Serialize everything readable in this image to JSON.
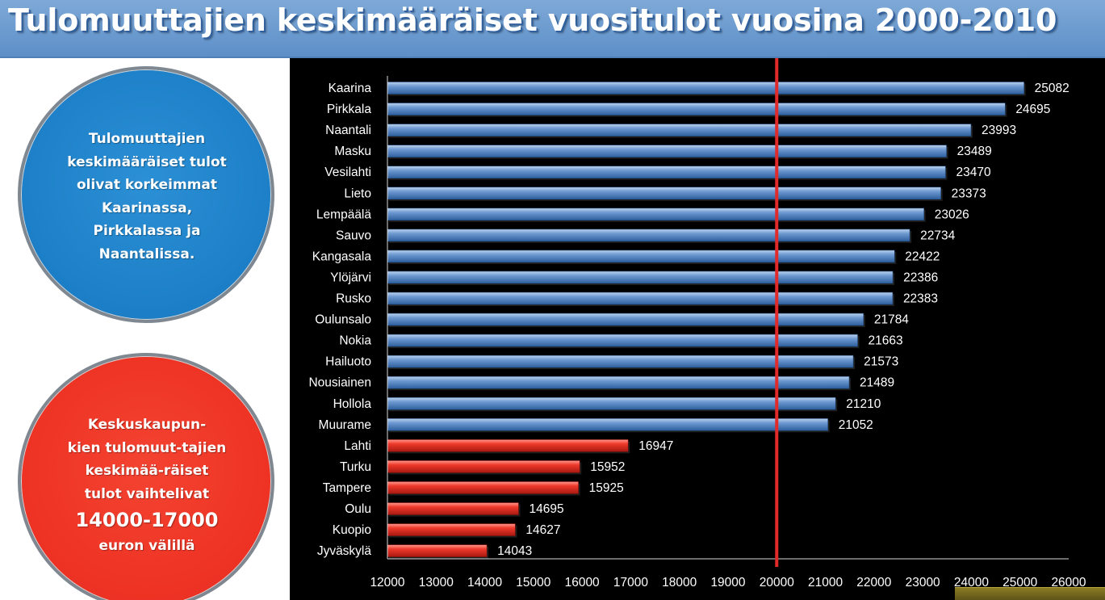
{
  "header": {
    "title": "Tulomuuttajien keskimääräiset vuositulot vuosina 2000-2010"
  },
  "callouts": {
    "top": {
      "lines": [
        "Tulomuuttajien",
        "keskimääräiset tulot",
        "olivat korkeimmat",
        "Kaarinassa,",
        "Pirkkalassa ja",
        "Naantalissa."
      ]
    },
    "bottom": {
      "lines": [
        "Keskuskaupun-",
        "kien tulomuut-tajien",
        "keskimää-räiset",
        "tulot vaihtelivat"
      ],
      "range": "14000-17000",
      "tail": "euron välillä"
    }
  },
  "colors": {
    "blue_bar": "#4f81bd",
    "red_bar": "#e8261c",
    "reference_line": "#e32a2a",
    "circle_blue": "#1d80c8",
    "circle_red": "#ee3324",
    "title_bar": "#6b9ad0"
  },
  "chart_data": {
    "type": "bar",
    "orientation": "horizontal",
    "categories": [
      "Kaarina",
      "Pirkkala",
      "Naantali",
      "Masku",
      "Vesilahti",
      "Lieto",
      "Lempäälä",
      "Sauvo",
      "Kangasala",
      "Ylöjärvi",
      "Rusko",
      "Oulunsalo",
      "Nokia",
      "Hailuoto",
      "Nousiainen",
      "Hollola",
      "Muurame",
      "Lahti",
      "Turku",
      "Tampere",
      "Oulu",
      "Kuopio",
      "Jyväskylä"
    ],
    "values": [
      25082,
      24695,
      23993,
      23489,
      23470,
      23373,
      23026,
      22734,
      22422,
      22386,
      22383,
      21784,
      21663,
      21573,
      21489,
      21210,
      21052,
      16947,
      15952,
      15925,
      14695,
      14627,
      14043
    ],
    "value_labels": [
      "25082",
      "24695",
      "23993",
      "23489",
      "23470",
      "23373",
      "23026",
      "22734",
      "22422",
      "22386",
      "22383",
      "21784",
      "21663",
      "21573",
      "21489",
      "21210",
      "21052",
      "16947",
      "15952",
      "15925",
      "14695",
      "14627",
      "14043"
    ],
    "bar_groups": [
      "blue",
      "blue",
      "blue",
      "blue",
      "blue",
      "blue",
      "blue",
      "blue",
      "blue",
      "blue",
      "blue",
      "blue",
      "blue",
      "blue",
      "blue",
      "blue",
      "blue",
      "red",
      "red",
      "red",
      "red",
      "red",
      "red"
    ],
    "xlim": [
      12000,
      26000
    ],
    "xticks": [
      "12000",
      "13000",
      "14000",
      "15000",
      "16000",
      "17000",
      "18000",
      "19000",
      "20000",
      "21000",
      "22000",
      "23000",
      "24000",
      "25000",
      "26000"
    ],
    "reference_line": 20000,
    "title": "",
    "xlabel": "",
    "ylabel": "",
    "grid": false,
    "legend": "none"
  }
}
